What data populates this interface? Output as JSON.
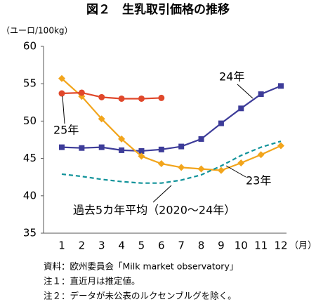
{
  "chart_data": {
    "type": "line",
    "title": "図２　生乳取引価格の推移",
    "y_label": "（ユーロ/100kg）",
    "x_label": "（月）",
    "categories": [
      "1",
      "2",
      "3",
      "4",
      "5",
      "6",
      "7",
      "8",
      "9",
      "10",
      "11",
      "12"
    ],
    "ylim": [
      35,
      60
    ],
    "yticks": [
      35,
      40,
      45,
      50,
      55,
      60
    ],
    "grid": false,
    "series": [
      {
        "name": "24年",
        "color": "#3d3c99",
        "marker": "square",
        "dash": false,
        "values": [
          46.5,
          46.4,
          46.5,
          46.1,
          46.0,
          46.2,
          46.6,
          47.6,
          49.7,
          51.7,
          53.6,
          54.7
        ]
      },
      {
        "name": "23年",
        "color": "#f2a51c",
        "marker": "diamond",
        "dash": false,
        "values": [
          55.7,
          53.3,
          50.3,
          47.6,
          45.3,
          44.3,
          43.8,
          43.6,
          43.4,
          44.4,
          45.5,
          46.7
        ]
      },
      {
        "name": "25年",
        "color": "#e0482b",
        "marker": "circle",
        "dash": false,
        "values": [
          53.7,
          53.8,
          53.2,
          53.0,
          53.0,
          53.1,
          null,
          null,
          null,
          null,
          null,
          null
        ]
      },
      {
        "name": "過去5カ年平均（2020～24年）",
        "color": "#11939a",
        "marker": "none",
        "dash": true,
        "values": [
          42.9,
          42.6,
          42.2,
          41.9,
          41.7,
          41.7,
          42.1,
          42.8,
          44.0,
          45.4,
          46.5,
          47.3
        ]
      }
    ],
    "notes": [
      "資料：欧州委員会「Milk market observatory」",
      "注１：直近月は推定値。",
      "注２：データが未公表のルクセンブルグを除く。"
    ]
  }
}
